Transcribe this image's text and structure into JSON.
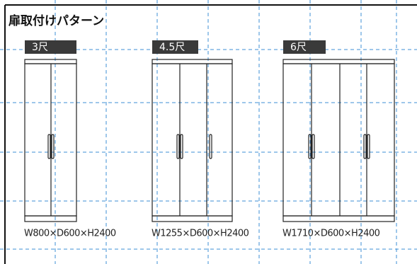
{
  "title": "扉取付けパターン",
  "patterns": [
    {
      "label": "3尺",
      "dimensions": "W800×D600×H2400"
    },
    {
      "label": "4.5尺",
      "dimensions": "W1255×D600×H2400"
    },
    {
      "label": "6尺",
      "dimensions": "W1710×D600×H2400"
    }
  ]
}
